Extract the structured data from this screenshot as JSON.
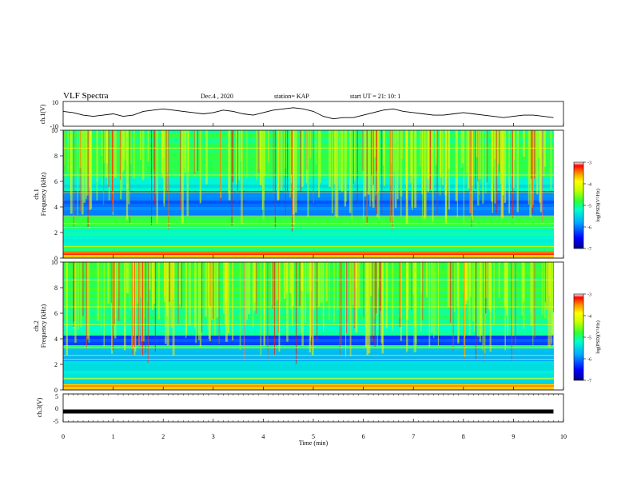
{
  "header": {
    "title": "VLF Spectra",
    "date": "Dec.4 , 2020",
    "station": "station= KAP",
    "start": "start UT =  21: 10: 1"
  },
  "colors": {
    "trace": "#000000",
    "colormap": [
      "#00008b",
      "#0000ff",
      "#00aaff",
      "#00ffcc",
      "#33ff33",
      "#ccff00",
      "#ffff00",
      "#ff8800",
      "#ff0000",
      "#ffffff"
    ]
  },
  "chart_data": [
    {
      "type": "line",
      "ylabel": "ch.1(V)",
      "ylim": [
        -10,
        10
      ],
      "yticks": [
        10,
        -10
      ],
      "xlim": [
        0,
        10
      ],
      "x": [
        0,
        0.2,
        0.4,
        0.6,
        0.8,
        1.0,
        1.2,
        1.4,
        1.6,
        1.8,
        2.0,
        2.2,
        2.4,
        2.6,
        2.8,
        3.0,
        3.2,
        3.4,
        3.6,
        3.8,
        4.0,
        4.2,
        4.4,
        4.6,
        4.8,
        5.0,
        5.2,
        5.4,
        5.6,
        5.8,
        6.0,
        6.2,
        6.4,
        6.6,
        6.8,
        7.0,
        7.2,
        7.4,
        7.6,
        7.8,
        8.0,
        8.2,
        8.4,
        8.6,
        8.8,
        9.0,
        9.2,
        9.4,
        9.6,
        9.8
      ],
      "y": [
        2,
        1,
        -1,
        -2,
        -1,
        0,
        -2,
        -1,
        2,
        3,
        4,
        3,
        2,
        1,
        0,
        1,
        3,
        2,
        0,
        -1,
        1,
        3,
        4,
        5,
        4,
        2,
        -2,
        -4,
        -3,
        -3,
        -1,
        1,
        3,
        4,
        2,
        1,
        0,
        -1,
        -1,
        0,
        1,
        0,
        -1,
        -2,
        -3,
        -2,
        -1,
        -1,
        -2,
        -3
      ]
    },
    {
      "type": "heatmap",
      "ylabel": "ch.1\nFrequency (kHz)",
      "ylim": [
        0,
        10
      ],
      "yticks": [
        0,
        2,
        4,
        6,
        8,
        10
      ],
      "xlim": [
        0,
        10
      ],
      "colorbar": {
        "label": "log(PSD)(V²/Hz)",
        "range": [
          -7,
          -3
        ],
        "ticks": [
          -3,
          -4,
          -5,
          -6,
          -7
        ]
      }
    },
    {
      "type": "heatmap",
      "ylabel": "ch.2\nFrequency (kHz)",
      "ylim": [
        0,
        10
      ],
      "yticks": [
        0,
        2,
        4,
        6,
        8,
        10
      ],
      "xlim": [
        0,
        10
      ],
      "colorbar": {
        "label": "log(PSD)(V²/Hz)",
        "range": [
          -7,
          -3
        ],
        "ticks": [
          -3,
          -4,
          -5,
          -6,
          -7
        ]
      }
    },
    {
      "type": "line",
      "ylabel": "ch.3(V)",
      "ylim": [
        -5,
        5
      ],
      "yticks": [
        5,
        0,
        -5
      ],
      "xlim": [
        0,
        10
      ],
      "x": [
        0,
        9.8
      ],
      "y": [
        -1.3,
        -1.3
      ]
    }
  ],
  "xaxis": {
    "label": "Time (min)",
    "ticks": [
      0,
      1,
      2,
      3,
      4,
      5,
      6,
      7,
      8,
      9,
      10
    ]
  }
}
